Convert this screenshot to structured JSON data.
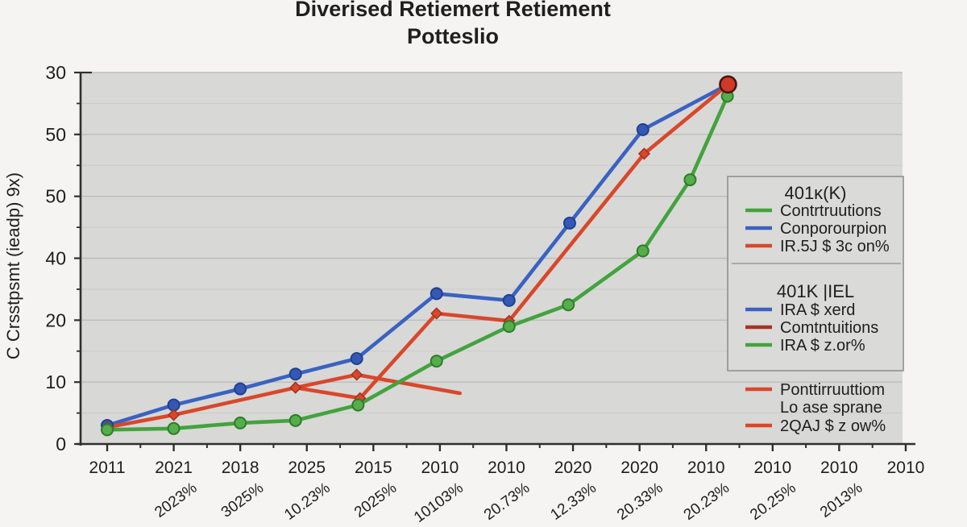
{
  "title": {
    "line1": "Diverised Retiemert Retiement",
    "line2": "Potteslio"
  },
  "y_axis": {
    "label": "C Crsstpsmt (ieadp) 9x)",
    "tick_labels": [
      "30",
      "50",
      "50",
      "40",
      "20",
      "10",
      "0"
    ]
  },
  "x_axis": {
    "tick_labels": [
      "2011",
      "2021",
      "2018",
      "2025",
      "2015",
      "2010",
      "2010",
      "2020",
      "2020",
      "2010",
      "2010",
      "2010",
      "2010"
    ],
    "sub_labels": [
      "",
      "2023%",
      "3025%",
      "10.23%",
      "2025%",
      "10103%",
      "20.73%",
      "12.33%",
      "20.33%",
      "20.23%",
      "20.25%",
      "2013%",
      ""
    ]
  },
  "legend": {
    "groups": [
      {
        "title": "401ĸ(K)",
        "boxed": true,
        "items": [
          {
            "label": "Contrtruutions",
            "swatch": "green"
          },
          {
            "label": "Conporourpion",
            "swatch": "blue"
          },
          {
            "label": "IR.5J $ 3c on%",
            "swatch": "red"
          }
        ]
      },
      {
        "title": "401K |IEL",
        "boxed": true,
        "items": [
          {
            "label": "IRA $ xerd",
            "swatch": "blue"
          },
          {
            "label": "Comtntuitions",
            "swatch": "dark_red"
          },
          {
            "label": "IRA $ z.or%",
            "swatch": "green"
          }
        ]
      },
      {
        "title": "",
        "boxed": false,
        "items": [
          {
            "label": "Ponttirruuttiom",
            "swatch": "red"
          },
          {
            "label": "Lo ase sprane",
            "swatch": null
          },
          {
            "label": "2QAJ $ z ow%",
            "swatch": "red"
          }
        ]
      }
    ]
  },
  "colors": {
    "blue": "#3a62c2",
    "blue_dark": "#20408f",
    "red": "#d9472b",
    "red_dark": "#a33120",
    "dark_red": "#a83325",
    "green": "#43a33e",
    "green_dark": "#2e7c29",
    "plot_bg": "#d8d8d6",
    "legend_bg": "#dadad8",
    "grid_major": "#bcbcba",
    "grid_minor": "#cccdca",
    "axis": "#2f2f2f",
    "end_marker_fill": "#cf3a28",
    "end_marker_edge": "#4a1410"
  },
  "chart_data": {
    "type": "line",
    "title": "Diverised Retiemert Retiement Potteslio",
    "xlabel": "",
    "ylabel": "C Crsstpsmt (ieadp) 9x)",
    "categories": [
      "2011",
      "2021",
      "2018",
      "2025",
      "2015",
      "2010",
      "2010",
      "2020",
      "2020",
      "2010",
      "2010",
      "2010",
      "2010"
    ],
    "y_tick_labels_top_to_bottom": [
      "30",
      "50",
      "50",
      "40",
      "20",
      "10",
      "0"
    ],
    "y_units_note": "axis labels are garbled; values below are in gridline units (10 per division, 0 at bottom)",
    "ylim": [
      0,
      62
    ],
    "grid": true,
    "legend_position": "right",
    "series": [
      {
        "name": "Conporourpion",
        "color_key": "blue",
        "marker": "circle",
        "x": [
          0,
          1,
          2,
          2.83,
          3.75,
          4.95,
          6.04,
          6.95,
          8.05,
          9.33
        ],
        "y": [
          3.0,
          6.3,
          8.9,
          11.3,
          13.8,
          24.3,
          23.2,
          35.7,
          50.8,
          58.1
        ]
      },
      {
        "name": "IR.5J $ 3c on%",
        "color_key": "red",
        "marker": "diamond",
        "x": [
          0,
          1,
          2.83,
          3.75
        ],
        "y": [
          2.7,
          4.7,
          9.1,
          11.2
        ]
      },
      {
        "name": "Comtntuitions (red branch)",
        "color_key": "red",
        "marker": "diamond",
        "x": [
          2.83,
          3.8,
          4.95,
          6.04,
          8.07,
          9.33
        ],
        "y": [
          9.1,
          7.4,
          21.1,
          19.9,
          46.9,
          58.1
        ]
      },
      {
        "name": "red-artifact-segment",
        "color_key": "red",
        "marker": "none",
        "x": [
          3.75,
          5.3
        ],
        "y": [
          11.2,
          8.2
        ]
      },
      {
        "name": "Contrtruutions",
        "color_key": "green",
        "marker": "circle",
        "x": [
          0,
          1,
          2,
          2.83,
          3.77,
          4.95,
          6.04,
          6.93,
          8.05,
          8.76,
          9.32
        ],
        "y": [
          2.3,
          2.5,
          3.4,
          3.8,
          6.3,
          13.4,
          19.0,
          22.5,
          31.2,
          42.7,
          56.2
        ]
      }
    ],
    "end_marker": {
      "x": 9.33,
      "y": 58.1,
      "note": "large red circle with dark edge where blue and red lines converge at top"
    }
  }
}
